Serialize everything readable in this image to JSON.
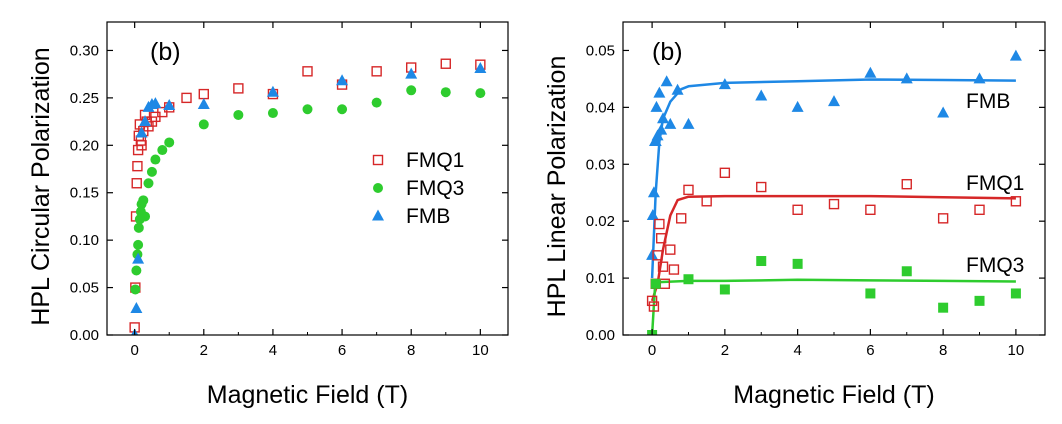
{
  "colors": {
    "fmq1": "#d62728",
    "fmq3": "#2ecc2e",
    "fmb": "#1e88e5"
  },
  "chart_data": [
    {
      "type": "scatter",
      "panel_label": "(b)",
      "xlabel": "Magnetic Field  (T)",
      "ylabel": "HPL Circular Polarization",
      "xlim": [
        -0.8,
        10.8
      ],
      "ylim": [
        0.0,
        0.33
      ],
      "xticks": [
        0,
        2,
        4,
        6,
        8,
        10
      ],
      "yticks": [
        0.0,
        0.05,
        0.1,
        0.15,
        0.2,
        0.25,
        0.3
      ],
      "ytick_labels": [
        "0.00",
        "0.05",
        "0.10",
        "0.15",
        "0.20",
        "0.25",
        "0.30"
      ],
      "legend_position": "right-center",
      "series": [
        {
          "name": "FMQ1",
          "marker": "open-square",
          "color": "#d62728",
          "points": [
            [
              0.0,
              0.008
            ],
            [
              0.02,
              0.05
            ],
            [
              0.04,
              0.125
            ],
            [
              0.06,
              0.16
            ],
            [
              0.08,
              0.178
            ],
            [
              0.1,
              0.195
            ],
            [
              0.12,
              0.21
            ],
            [
              0.15,
              0.222
            ],
            [
              0.18,
              0.205
            ],
            [
              0.2,
              0.2
            ],
            [
              0.25,
              0.215
            ],
            [
              0.3,
              0.232
            ],
            [
              0.35,
              0.225
            ],
            [
              0.4,
              0.22
            ],
            [
              0.5,
              0.225
            ],
            [
              0.6,
              0.23
            ],
            [
              0.8,
              0.235
            ],
            [
              1.0,
              0.24
            ],
            [
              1.5,
              0.25
            ],
            [
              2.0,
              0.254
            ],
            [
              3.0,
              0.26
            ],
            [
              4.0,
              0.254
            ],
            [
              5.0,
              0.278
            ],
            [
              6.0,
              0.264
            ],
            [
              7.0,
              0.278
            ],
            [
              8.0,
              0.282
            ],
            [
              9.0,
              0.286
            ],
            [
              10.0,
              0.285
            ]
          ]
        },
        {
          "name": "FMQ3",
          "marker": "filled-circle",
          "color": "#2ecc2e",
          "points": [
            [
              0.02,
              0.048
            ],
            [
              0.05,
              0.068
            ],
            [
              0.08,
              0.085
            ],
            [
              0.1,
              0.095
            ],
            [
              0.12,
              0.113
            ],
            [
              0.15,
              0.122
            ],
            [
              0.18,
              0.13
            ],
            [
              0.2,
              0.138
            ],
            [
              0.25,
              0.142
            ],
            [
              0.3,
              0.125
            ],
            [
              0.4,
              0.16
            ],
            [
              0.5,
              0.172
            ],
            [
              0.6,
              0.185
            ],
            [
              0.8,
              0.195
            ],
            [
              1.0,
              0.203
            ],
            [
              2.0,
              0.222
            ],
            [
              3.0,
              0.232
            ],
            [
              4.0,
              0.234
            ],
            [
              5.0,
              0.238
            ],
            [
              6.0,
              0.238
            ],
            [
              7.0,
              0.245
            ],
            [
              8.0,
              0.258
            ],
            [
              9.0,
              0.256
            ],
            [
              10.0,
              0.255
            ]
          ]
        },
        {
          "name": "FMB",
          "marker": "filled-triangle",
          "color": "#1e88e5",
          "points": [
            [
              0.0,
              0.0
            ],
            [
              0.05,
              0.028
            ],
            [
              0.1,
              0.08
            ],
            [
              0.2,
              0.213
            ],
            [
              0.3,
              0.225
            ],
            [
              0.4,
              0.24
            ],
            [
              0.5,
              0.243
            ],
            [
              0.6,
              0.244
            ],
            [
              1.0,
              0.242
            ],
            [
              2.0,
              0.243
            ],
            [
              4.0,
              0.256
            ],
            [
              6.0,
              0.268
            ],
            [
              8.0,
              0.275
            ],
            [
              10.0,
              0.281
            ]
          ]
        }
      ]
    },
    {
      "type": "scatter",
      "panel_label": "(b)",
      "xlabel": "Magnetic Field  (T)",
      "ylabel": "HPL Linear Polarization",
      "xlim": [
        -0.8,
        10.8
      ],
      "ylim": [
        0.0,
        0.055
      ],
      "xticks": [
        0,
        2,
        4,
        6,
        8,
        10
      ],
      "yticks": [
        0.0,
        0.01,
        0.02,
        0.03,
        0.04,
        0.05
      ],
      "ytick_labels": [
        "0.00",
        "0.01",
        "0.02",
        "0.03",
        "0.04",
        "0.05"
      ],
      "series": [
        {
          "name": "FMB",
          "marker": "filled-triangle",
          "color": "#1e88e5",
          "points": [
            [
              0.0,
              0.014
            ],
            [
              0.02,
              0.021
            ],
            [
              0.05,
              0.025
            ],
            [
              0.08,
              0.034
            ],
            [
              0.1,
              0.034
            ],
            [
              0.12,
              0.04
            ],
            [
              0.15,
              0.035
            ],
            [
              0.2,
              0.0425
            ],
            [
              0.25,
              0.036
            ],
            [
              0.3,
              0.038
            ],
            [
              0.4,
              0.0445
            ],
            [
              0.5,
              0.037
            ],
            [
              0.7,
              0.043
            ],
            [
              1.0,
              0.037
            ],
            [
              2.0,
              0.044
            ],
            [
              3.0,
              0.042
            ],
            [
              4.0,
              0.04
            ],
            [
              5.0,
              0.041
            ],
            [
              6.0,
              0.046
            ],
            [
              7.0,
              0.045
            ],
            [
              8.0,
              0.039
            ],
            [
              9.0,
              0.045
            ],
            [
              10.0,
              0.049
            ]
          ],
          "fit": [
            [
              0.0,
              0.01
            ],
            [
              0.1,
              0.025
            ],
            [
              0.2,
              0.034
            ],
            [
              0.3,
              0.038
            ],
            [
              0.5,
              0.041
            ],
            [
              0.8,
              0.0432
            ],
            [
              1.0,
              0.0437
            ],
            [
              2.0,
              0.0443
            ],
            [
              4.0,
              0.0446
            ],
            [
              6.0,
              0.0449
            ],
            [
              8.0,
              0.0448
            ],
            [
              10.0,
              0.0447
            ]
          ]
        },
        {
          "name": "FMQ1",
          "marker": "open-square",
          "color": "#d62728",
          "points": [
            [
              0.0,
              0.006
            ],
            [
              0.05,
              0.005
            ],
            [
              0.1,
              0.009
            ],
            [
              0.15,
              0.014
            ],
            [
              0.2,
              0.0195
            ],
            [
              0.25,
              0.017
            ],
            [
              0.3,
              0.012
            ],
            [
              0.35,
              0.009
            ],
            [
              0.5,
              0.015
            ],
            [
              0.6,
              0.0115
            ],
            [
              0.8,
              0.0205
            ],
            [
              1.0,
              0.0255
            ],
            [
              1.5,
              0.0235
            ],
            [
              2.0,
              0.0285
            ],
            [
              3.0,
              0.026
            ],
            [
              4.0,
              0.022
            ],
            [
              5.0,
              0.023
            ],
            [
              6.0,
              0.022
            ],
            [
              7.0,
              0.0265
            ],
            [
              8.0,
              0.0205
            ],
            [
              9.0,
              0.022
            ],
            [
              10.0,
              0.0235
            ]
          ],
          "fit": [
            [
              0.0,
              0.006
            ],
            [
              0.15,
              0.009
            ],
            [
              0.3,
              0.015
            ],
            [
              0.5,
              0.021
            ],
            [
              0.7,
              0.0237
            ],
            [
              1.0,
              0.0243
            ],
            [
              2.0,
              0.0244
            ],
            [
              4.0,
              0.0244
            ],
            [
              6.0,
              0.0244
            ],
            [
              8.0,
              0.0242
            ],
            [
              10.0,
              0.024
            ]
          ]
        },
        {
          "name": "FMQ3",
          "marker": "filled-square",
          "color": "#2ecc2e",
          "points": [
            [
              0.0,
              0.0
            ],
            [
              0.1,
              0.009
            ],
            [
              1.0,
              0.0098
            ],
            [
              2.0,
              0.008
            ],
            [
              3.0,
              0.013
            ],
            [
              4.0,
              0.0125
            ],
            [
              6.0,
              0.0073
            ],
            [
              7.0,
              0.0112
            ],
            [
              8.0,
              0.0048
            ],
            [
              9.0,
              0.006
            ],
            [
              10.0,
              0.0073
            ]
          ],
          "fit": [
            [
              0.0,
              0.0
            ],
            [
              0.08,
              0.0085
            ],
            [
              0.2,
              0.0093
            ],
            [
              1.0,
              0.0095
            ],
            [
              2.0,
              0.0095
            ],
            [
              4.0,
              0.0097
            ],
            [
              6.0,
              0.0096
            ],
            [
              8.0,
              0.0095
            ],
            [
              10.0,
              0.0094
            ]
          ]
        }
      ]
    }
  ]
}
